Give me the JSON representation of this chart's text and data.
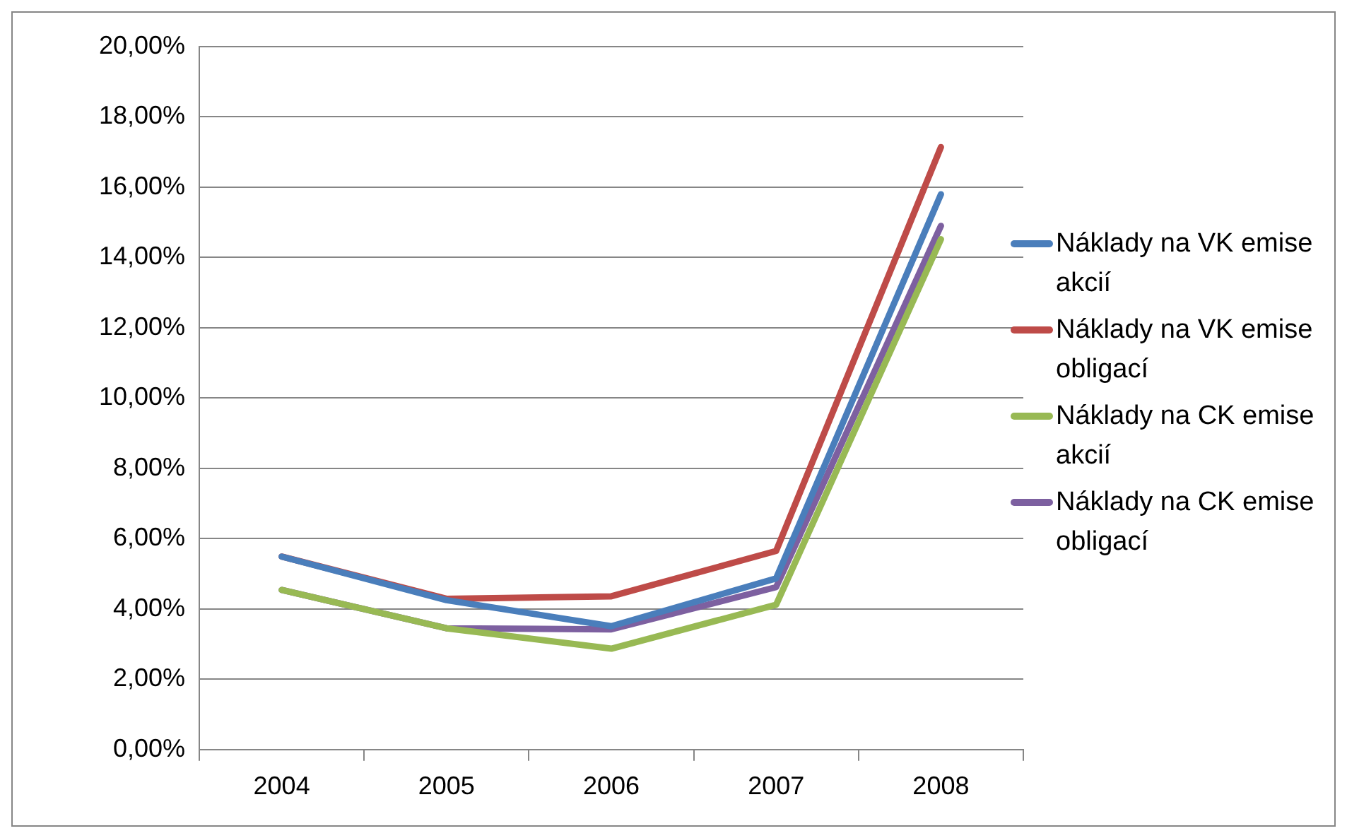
{
  "chart_data": {
    "type": "line",
    "categories": [
      "2004",
      "2005",
      "2006",
      "2007",
      "2008"
    ],
    "series": [
      {
        "name": "Náklady na VK emise akcií",
        "color": "#4a7ebb",
        "values": [
          5.49,
          4.25,
          3.51,
          4.87,
          15.8
        ]
      },
      {
        "name": "Náklady na VK emise obligací",
        "color": "#be4b48",
        "values": [
          5.49,
          4.29,
          4.36,
          5.65,
          17.14
        ]
      },
      {
        "name": "Náklady na CK emise akcií",
        "color": "#98b954",
        "values": [
          4.54,
          3.45,
          2.87,
          4.12,
          14.52
        ]
      },
      {
        "name": "Náklady na CK emise obligací",
        "color": "#7d60a0",
        "values": [
          4.54,
          3.45,
          3.42,
          4.62,
          14.9
        ]
      }
    ],
    "ylim": [
      0,
      20
    ],
    "yticks": [
      {
        "value": 0,
        "label": "0,00%"
      },
      {
        "value": 2,
        "label": "2,00%"
      },
      {
        "value": 4,
        "label": "4,00%"
      },
      {
        "value": 6,
        "label": "6,00%"
      },
      {
        "value": 8,
        "label": "8,00%"
      },
      {
        "value": 10,
        "label": "10,00%"
      },
      {
        "value": 12,
        "label": "12,00%"
      },
      {
        "value": 14,
        "label": "14,00%"
      },
      {
        "value": 16,
        "label": "16,00%"
      },
      {
        "value": 18,
        "label": "18,00%"
      },
      {
        "value": 20,
        "label": "20,00%"
      }
    ],
    "grid": "y",
    "legend": "right",
    "marker": "none",
    "line_style": "solid"
  }
}
